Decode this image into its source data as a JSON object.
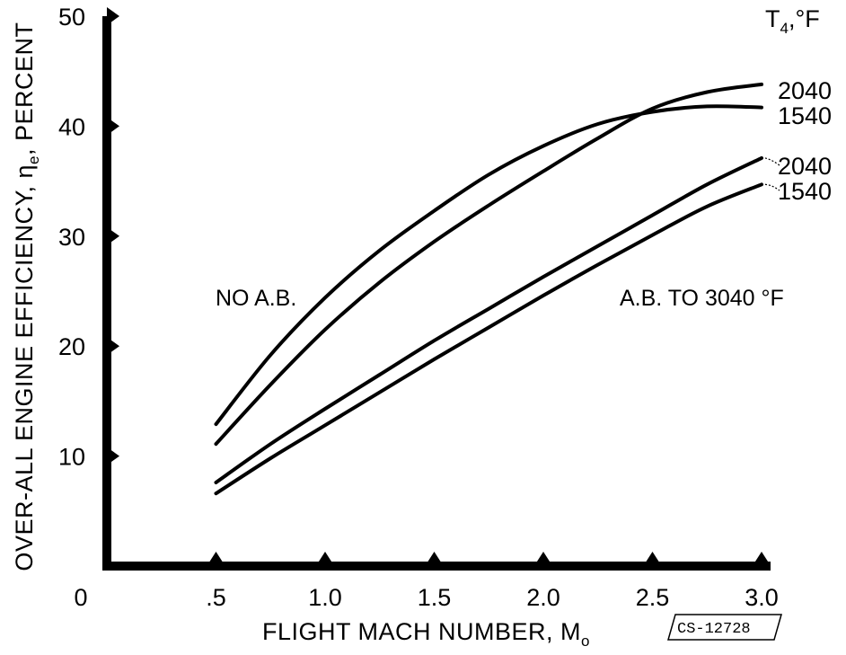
{
  "chart_data": {
    "type": "line",
    "xlabel": "FLIGHT MACH NUMBER, M",
    "xlabel_subscript": "o",
    "ylabel": "OVER-ALL ENGINE EFFICIENCY, η",
    "ylabel_subscript": "e",
    "ylabel_suffix": ", PERCENT",
    "xlim": [
      0,
      3.0
    ],
    "ylim": [
      0,
      50
    ],
    "x_ticks": [
      {
        "value": 0,
        "label": "0"
      },
      {
        "value": 0.5,
        "label": ".5"
      },
      {
        "value": 1.0,
        "label": "1.0"
      },
      {
        "value": 1.5,
        "label": "1.5"
      },
      {
        "value": 2.0,
        "label": "2.0"
      },
      {
        "value": 2.5,
        "label": "2.5"
      },
      {
        "value": 3.0,
        "label": "3.0"
      }
    ],
    "y_ticks": [
      {
        "value": 10,
        "label": "10"
      },
      {
        "value": 20,
        "label": "20"
      },
      {
        "value": 30,
        "label": "30"
      },
      {
        "value": 40,
        "label": "40"
      },
      {
        "value": 50,
        "label": "50"
      }
    ],
    "grid": false,
    "legend_title": "T",
    "legend_title_subscript": "4",
    "legend_title_suffix": ",°F",
    "annotations": [
      {
        "text": "NO A.B.",
        "x": 0.5,
        "y": 25
      },
      {
        "text": "A.B. TO 3040 °F",
        "x": 1.9,
        "y": 25
      }
    ],
    "stamp": "CS-12728",
    "series": [
      {
        "name": "2040",
        "group": "NO A.B.",
        "x": [
          0.5,
          0.75,
          1.0,
          1.25,
          1.5,
          1.75,
          2.0,
          2.25,
          2.5,
          2.75,
          3.0
        ],
        "y": [
          12.9,
          19.2,
          24.4,
          28.7,
          32.3,
          35.6,
          38.2,
          40.2,
          41.3,
          41.8,
          41.7
        ]
      },
      {
        "name": "1540",
        "group": "NO A.B.",
        "x": [
          0.5,
          0.75,
          1.0,
          1.25,
          1.5,
          1.75,
          2.0,
          2.25,
          2.5,
          2.75,
          3.0
        ],
        "y": [
          11.1,
          16.5,
          21.5,
          25.8,
          29.5,
          32.8,
          35.9,
          38.9,
          41.6,
          43.1,
          43.8
        ]
      },
      {
        "name": "2040",
        "group": "A.B. TO 3040 °F",
        "x": [
          0.5,
          0.75,
          1.0,
          1.25,
          1.5,
          1.75,
          2.0,
          2.25,
          2.5,
          2.75,
          3.0
        ],
        "y": [
          7.6,
          11.1,
          14.3,
          17.4,
          20.5,
          23.4,
          26.3,
          29.1,
          31.9,
          34.7,
          37.1
        ]
      },
      {
        "name": "1540",
        "group": "A.B. TO 3040 °F",
        "x": [
          0.5,
          0.75,
          1.0,
          1.25,
          1.5,
          1.75,
          2.0,
          2.25,
          2.5,
          2.75,
          3.0
        ],
        "y": [
          6.6,
          9.8,
          12.8,
          15.8,
          18.8,
          21.7,
          24.6,
          27.4,
          30.1,
          32.7,
          34.7
        ]
      }
    ],
    "end_labels": [
      "2040",
      "1540",
      "2040",
      "1540"
    ]
  }
}
